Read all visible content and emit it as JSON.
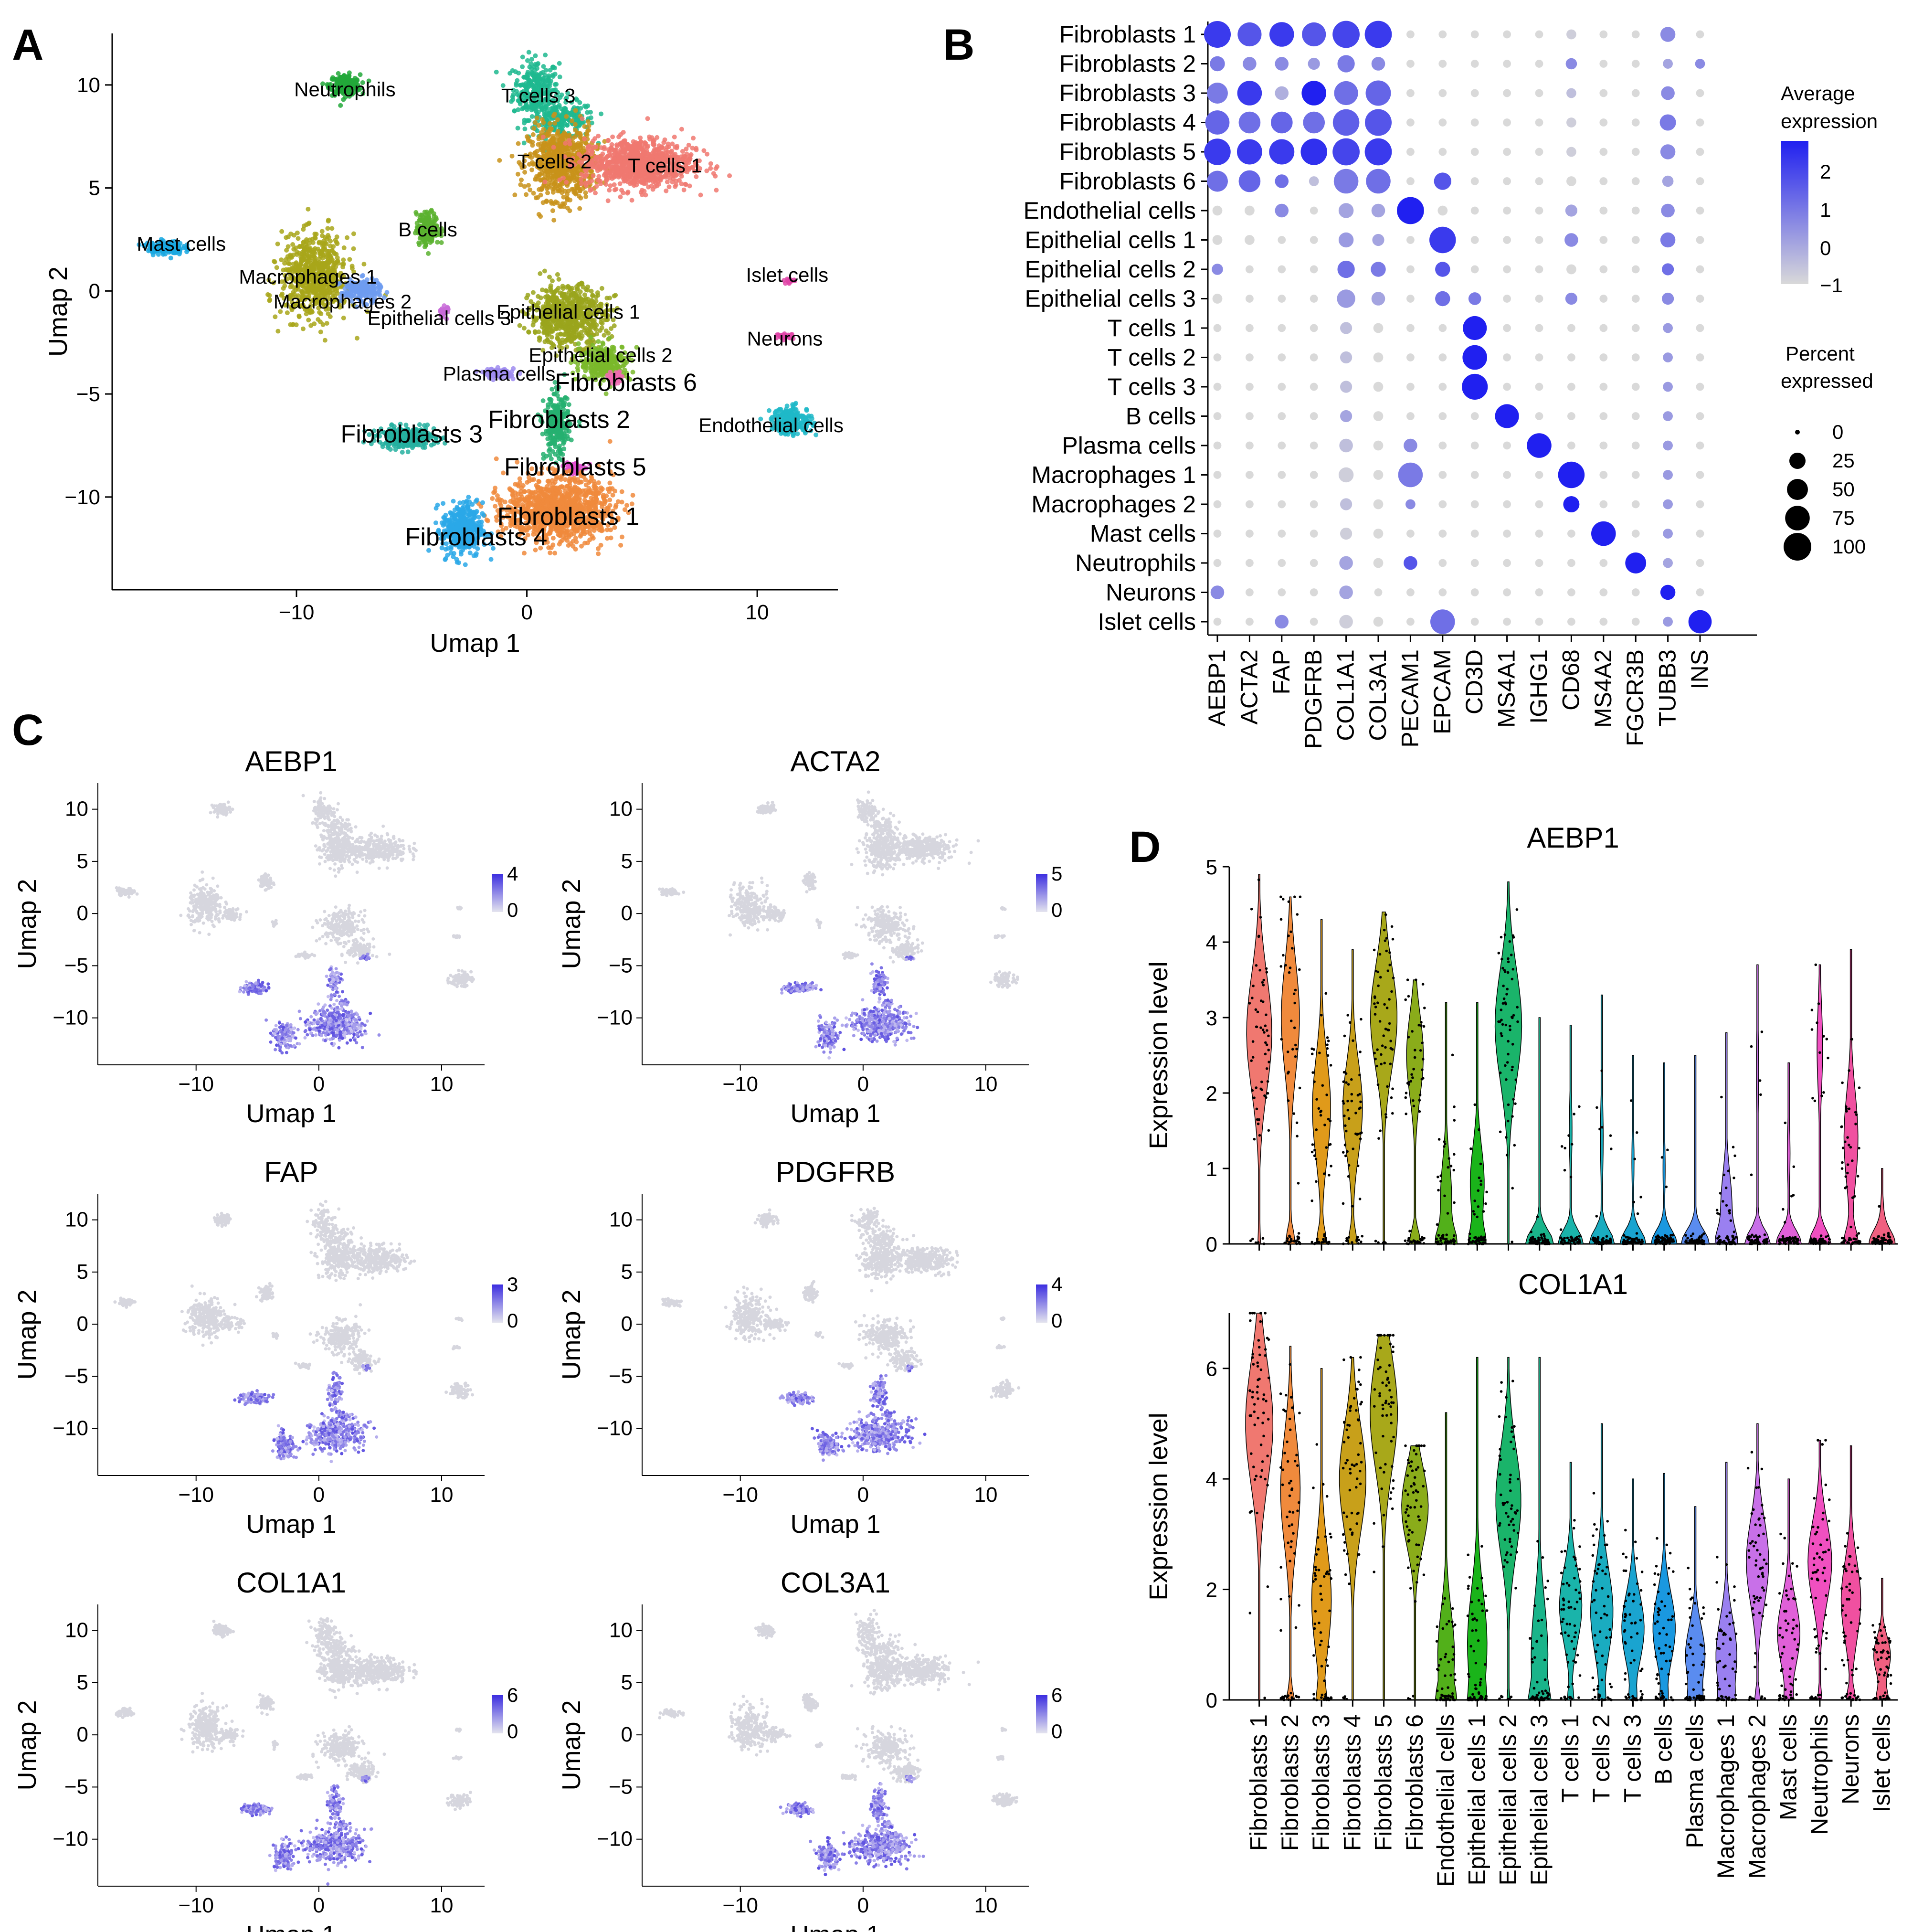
{
  "panels": {
    "A": "A",
    "B": "B",
    "C": "C",
    "D": "D"
  },
  "umap_axes": {
    "xlabel": "Umap 1",
    "ylabel": "Umap 2",
    "a_xticks": [
      -10,
      0,
      10
    ],
    "a_yticks": [
      10,
      5,
      0,
      -5,
      -10
    ],
    "c_xticks": [
      -10,
      0,
      10
    ],
    "c_yticks": [
      10,
      5,
      0,
      -5,
      -10
    ]
  },
  "clusters": [
    {
      "label": "T cells 3",
      "color": "#1fb98f",
      "x": 0.5,
      "y": 9.5,
      "size": "s"
    },
    {
      "label": "Neutrophils",
      "color": "#22a83a",
      "x": -7.9,
      "y": 9.8,
      "size": "s"
    },
    {
      "label": "T cells 2",
      "color": "#c8921a",
      "x": 1.2,
      "y": 6.3,
      "size": "s"
    },
    {
      "label": "T cells 1",
      "color": "#f07870",
      "x": 6.0,
      "y": 6.1,
      "size": "s"
    },
    {
      "label": "B cells",
      "color": "#5bb12f",
      "x": -4.3,
      "y": 3.0,
      "size": "s"
    },
    {
      "label": "Mast cells",
      "color": "#1aa8e0",
      "x": -15.0,
      "y": 2.3,
      "size": "s"
    },
    {
      "label": "Macrophages 1",
      "color": "#a8a61a",
      "x": -9.5,
      "y": 0.7,
      "size": "s"
    },
    {
      "label": "Macrophages 2",
      "color": "#6e9cf0",
      "x": -8.0,
      "y": -0.5,
      "size": "s"
    },
    {
      "label": "Epithelial cells 1",
      "color": "#9aa41c",
      "x": 1.8,
      "y": -1.0,
      "size": "s"
    },
    {
      "label": "Epithelial cells 3",
      "color": "#c86ad8",
      "x": -3.8,
      "y": -1.3,
      "size": "s"
    },
    {
      "label": "Islet cells",
      "color": "#e045a8",
      "x": 11.3,
      "y": 0.8,
      "size": "s"
    },
    {
      "label": "Neurons",
      "color": "#e045a8",
      "x": 11.2,
      "y": -2.3,
      "size": "s"
    },
    {
      "label": "Epithelial cells 2",
      "color": "#7ab82a",
      "x": 3.2,
      "y": -3.1,
      "size": "s"
    },
    {
      "label": "Plasma cells",
      "color": "#9f8cf0",
      "x": -1.2,
      "y": -4.0,
      "size": "s"
    },
    {
      "label": "Fibroblasts 6",
      "color": "#f06ab0",
      "x": 4.3,
      "y": -4.5,
      "size": "l"
    },
    {
      "label": "Fibroblasts 2",
      "color": "#26b070",
      "x": 1.4,
      "y": -6.3,
      "size": "l"
    },
    {
      "label": "Endothelial cells",
      "color": "#1fb8c8",
      "x": 10.6,
      "y": -6.5,
      "size": "s"
    },
    {
      "label": "Fibroblasts 3",
      "color": "#26b0a0",
      "x": -5.0,
      "y": -7.0,
      "size": "l"
    },
    {
      "label": "Fibroblasts 5",
      "color": "#e050d0",
      "x": 2.1,
      "y": -8.6,
      "size": "l"
    },
    {
      "label": "Fibroblasts 1",
      "color": "#f08a3c",
      "x": 1.8,
      "y": -11.0,
      "size": "l"
    },
    {
      "label": "Fibroblasts 4",
      "color": "#2aa8e8",
      "x": -2.2,
      "y": -12.0,
      "size": "l"
    }
  ],
  "dotplot": {
    "genes": [
      "AEBP1",
      "ACTA2",
      "FAP",
      "PDGFRB",
      "COL1A1",
      "COL3A1",
      "PECAM1",
      "EPCAM",
      "CD3D",
      "MS4A1",
      "IGHG1",
      "CD68",
      "MS4A2",
      "FGCR3B",
      "TUBB3",
      "INS"
    ],
    "cell_types": [
      "Fibroblasts 1",
      "Fibroblasts 2",
      "Fibroblasts 3",
      "Fibroblasts 4",
      "Fibroblasts 5",
      "Fibroblasts 6",
      "Endothelial cells",
      "Epithelial cells 1",
      "Epithelial cells 2",
      "Epithelial cells 3",
      "T cells 1",
      "T cells 2",
      "T cells 3",
      "B cells",
      "Plasma cells",
      "Macrophages 1",
      "Macrophages 2",
      "Mast cells",
      "Neutrophils",
      "Neurons",
      "Islet cells"
    ],
    "avg_expression": [
      [
        2,
        1.5,
        2,
        1.5,
        1.8,
        2,
        -1,
        -1,
        -1,
        -1,
        -1,
        -0.8,
        -1,
        -1,
        0.5,
        -1
      ],
      [
        0.8,
        0.5,
        0.5,
        0.2,
        0.8,
        0.5,
        -1,
        -1,
        -1,
        -1,
        -1,
        0.5,
        -1,
        -1,
        0,
        0.5
      ],
      [
        0.8,
        2,
        -0.2,
        2.5,
        1,
        1.2,
        -1,
        -1,
        -1,
        -1,
        -1,
        -0.5,
        -1,
        -1,
        0.5,
        -1
      ],
      [
        1.2,
        1,
        1.2,
        1,
        1.3,
        1.5,
        -1,
        -1,
        -1,
        -1,
        -1,
        -0.8,
        -1,
        -1,
        0.8,
        -1
      ],
      [
        2,
        2,
        2,
        2.2,
        1.8,
        2,
        -1,
        -1,
        -1,
        -1,
        -1,
        -0.8,
        -1,
        -1,
        0.5,
        -1
      ],
      [
        1,
        1.2,
        1,
        -0.5,
        0.8,
        1,
        -1,
        1.5,
        -1,
        -1,
        -1,
        -1,
        -1,
        -1,
        0,
        -1
      ],
      [
        -1,
        -1,
        0.5,
        -1,
        0,
        0,
        2.5,
        -1,
        -1,
        -1,
        -1,
        0,
        -1,
        -1,
        0.5,
        -1
      ],
      [
        -1,
        -1,
        -1,
        -1,
        0.2,
        0,
        -1,
        2,
        -1,
        -1,
        -1,
        0.5,
        -1,
        -1,
        0.8,
        -1
      ],
      [
        0.5,
        -1,
        -1,
        -1,
        1,
        0.8,
        -1,
        1.5,
        -1,
        -1,
        -1,
        -1,
        -1,
        -1,
        1,
        -1
      ],
      [
        -1,
        -1,
        -1,
        -1,
        0.2,
        0,
        -1,
        1,
        0.8,
        -1,
        -1,
        0.5,
        -1,
        -1,
        0.5,
        -1
      ],
      [
        -1,
        -1,
        -1,
        -1,
        -0.5,
        -1,
        -1,
        -1,
        2.5,
        -1,
        -1,
        -1,
        -1,
        -1,
        0.2,
        -1
      ],
      [
        -1,
        -1,
        -1,
        -1,
        -0.5,
        -1,
        -1,
        -1,
        2.5,
        -1,
        -1,
        -1,
        -1,
        -1,
        0.2,
        -1
      ],
      [
        -1,
        -1,
        -1,
        -1,
        -0.5,
        -1,
        -1,
        -1,
        2.5,
        -1,
        -1,
        -1,
        -1,
        -1,
        0.2,
        -1
      ],
      [
        -1,
        -1,
        -1,
        -1,
        0,
        -1,
        -1,
        -1,
        -1,
        2.5,
        -1,
        -1,
        -1,
        -1,
        0.2,
        -1
      ],
      [
        -1,
        -1,
        -1,
        -1,
        -0.5,
        -1,
        0.5,
        -1,
        -1,
        -1,
        2.5,
        -1,
        -1,
        -1,
        0.2,
        -1
      ],
      [
        -1,
        -1,
        -1,
        -1,
        -0.8,
        -1,
        0.8,
        -1,
        -1,
        -1,
        -1,
        2.5,
        -1,
        -1,
        0.2,
        -1
      ],
      [
        -1,
        -1,
        -1,
        -1,
        -0.5,
        -1,
        0.5,
        -1,
        -1,
        -1,
        -1,
        2.5,
        -1,
        -1,
        0.2,
        -1
      ],
      [
        -1,
        -1,
        -1,
        -1,
        -0.8,
        -1,
        -1,
        -1,
        -1,
        -1,
        -1,
        -1,
        2.5,
        -1,
        0.2,
        -1
      ],
      [
        -1,
        -1,
        -1,
        -1,
        0,
        -1,
        1.5,
        -1,
        -1,
        -1,
        -1,
        -1,
        -1,
        2.5,
        0,
        -1
      ],
      [
        0.5,
        -1,
        -1,
        -1,
        0,
        -1,
        -1,
        -1,
        -1,
        -1,
        -1,
        -1,
        -1,
        -1,
        2.5,
        -1
      ],
      [
        -1,
        -1,
        0.5,
        -1,
        -0.8,
        -1,
        -1,
        1,
        -1,
        -1,
        -1,
        -1,
        -1,
        -1,
        0.2,
        2.5
      ]
    ],
    "pct_expressed": [
      [
        92,
        70,
        75,
        70,
        95,
        95,
        2,
        2,
        2,
        2,
        2,
        5,
        2,
        2,
        20,
        2
      ],
      [
        20,
        15,
        15,
        10,
        30,
        15,
        2,
        2,
        2,
        2,
        2,
        8,
        2,
        2,
        5,
        5
      ],
      [
        50,
        75,
        15,
        75,
        70,
        80,
        2,
        2,
        2,
        2,
        2,
        5,
        2,
        2,
        15,
        2
      ],
      [
        72,
        55,
        55,
        55,
        90,
        92,
        2,
        2,
        2,
        2,
        2,
        5,
        2,
        2,
        25,
        2
      ],
      [
        90,
        80,
        80,
        90,
        95,
        95,
        2,
        2,
        2,
        2,
        2,
        5,
        2,
        2,
        20,
        2
      ],
      [
        50,
        55,
        15,
        5,
        75,
        75,
        2,
        30,
        2,
        2,
        2,
        5,
        2,
        2,
        8,
        2
      ],
      [
        5,
        5,
        15,
        2,
        20,
        15,
        95,
        5,
        2,
        2,
        2,
        10,
        2,
        2,
        15,
        2
      ],
      [
        5,
        5,
        2,
        2,
        20,
        10,
        2,
        90,
        2,
        2,
        2,
        15,
        2,
        2,
        20,
        2
      ],
      [
        8,
        2,
        2,
        2,
        30,
        20,
        2,
        20,
        2,
        2,
        2,
        5,
        2,
        2,
        10,
        2
      ],
      [
        5,
        2,
        2,
        2,
        35,
        15,
        2,
        20,
        12,
        2,
        2,
        10,
        2,
        2,
        10,
        2
      ],
      [
        2,
        2,
        2,
        2,
        10,
        5,
        2,
        2,
        70,
        2,
        2,
        2,
        2,
        2,
        5,
        2
      ],
      [
        2,
        2,
        2,
        2,
        10,
        5,
        2,
        2,
        75,
        2,
        2,
        2,
        2,
        2,
        5,
        2
      ],
      [
        2,
        2,
        2,
        2,
        10,
        5,
        2,
        2,
        85,
        2,
        2,
        2,
        2,
        2,
        5,
        2
      ],
      [
        2,
        2,
        2,
        2,
        10,
        5,
        2,
        2,
        2,
        70,
        2,
        2,
        2,
        2,
        5,
        2
      ],
      [
        2,
        2,
        2,
        2,
        15,
        5,
        15,
        2,
        2,
        2,
        75,
        2,
        2,
        2,
        5,
        2
      ],
      [
        2,
        2,
        2,
        2,
        20,
        5,
        75,
        2,
        2,
        2,
        2,
        90,
        2,
        2,
        5,
        2
      ],
      [
        2,
        2,
        2,
        2,
        10,
        5,
        5,
        2,
        2,
        2,
        2,
        25,
        2,
        2,
        5,
        2
      ],
      [
        2,
        2,
        2,
        2,
        10,
        5,
        2,
        2,
        2,
        2,
        2,
        2,
        75,
        2,
        5,
        2
      ],
      [
        2,
        2,
        2,
        2,
        15,
        5,
        15,
        2,
        2,
        2,
        2,
        2,
        2,
        50,
        5,
        2
      ],
      [
        15,
        2,
        2,
        2,
        15,
        2,
        2,
        2,
        2,
        2,
        2,
        2,
        2,
        2,
        20,
        2
      ],
      [
        2,
        2,
        15,
        2,
        15,
        5,
        2,
        75,
        2,
        2,
        2,
        2,
        2,
        2,
        5,
        65
      ]
    ],
    "legend": {
      "avg_title": "Average expression",
      "avg_ticks": [
        2,
        1,
        0,
        -1
      ],
      "pct_title": "Percent expressed",
      "pct_ticks": [
        0,
        25,
        50,
        75,
        100
      ]
    }
  },
  "feature_plots": [
    {
      "gene": "AEBP1",
      "max": 4,
      "min": 0
    },
    {
      "gene": "ACTA2",
      "max": 5,
      "min": 0
    },
    {
      "gene": "FAP",
      "max": 3,
      "min": 0
    },
    {
      "gene": "PDGFRB",
      "max": 4,
      "min": 0
    },
    {
      "gene": "COL1A1",
      "max": 6,
      "min": 0
    },
    {
      "gene": "COL3A1",
      "max": 6,
      "min": 0
    }
  ],
  "violin": {
    "ylabel": "Expression level",
    "categories": [
      "Fibroblasts 1",
      "Fibroblasts 2",
      "Fibroblasts 3",
      "Fibroblasts 4",
      "Fibroblasts 5",
      "Fibroblasts 6",
      "Endothelial cells",
      "Epithelial cells 1",
      "Epithelial cells 2",
      "Epithelial cells 3",
      "T cells 1",
      "T cells 2",
      "T cells 3",
      "B cells",
      "Plasma cells",
      "Macrophages 1",
      "Macrophages 2",
      "Mast cells",
      "Neutrophils",
      "Neurons",
      "Islet cells"
    ],
    "colors": [
      "#f07870",
      "#f08a3c",
      "#e09a1a",
      "#c8a01a",
      "#a8a81a",
      "#8aac1a",
      "#52b01a",
      "#1ab41a",
      "#1ab46a",
      "#1ab48a",
      "#1ab4aa",
      "#1aacc0",
      "#1aa4d0",
      "#1a98e0",
      "#5a8cf0",
      "#9a80f0",
      "#c870e8",
      "#e060d8",
      "#f050c0",
      "#f050a0",
      "#f06080"
    ],
    "plots": [
      {
        "gene": "AEBP1",
        "yticks": [
          0,
          1,
          2,
          3,
          4,
          5
        ],
        "ymax": 5,
        "medians": [
          2.8,
          3.0,
          1.8,
          1.8,
          3.0,
          2.5,
          0.6,
          0.8,
          2.9,
          0.0,
          1.5,
          1.4,
          1.1,
          1.0,
          0.0,
          0.5,
          2.3,
          1.2,
          2.6,
          1.4,
          0.4
        ],
        "maxes": [
          4.9,
          4.6,
          4.3,
          3.9,
          4.4,
          3.5,
          3.2,
          3.2,
          4.8,
          3.0,
          2.9,
          3.3,
          2.5,
          2.4,
          2.5,
          2.8,
          3.7,
          2.4,
          3.7,
          3.9,
          1.0
        ],
        "zero_frac": [
          0.1,
          0.35,
          0.35,
          0.3,
          0.05,
          0.4,
          0.6,
          0.5,
          0.05,
          0.95,
          0.9,
          0.9,
          0.92,
          0.92,
          0.95,
          0.6,
          0.92,
          0.9,
          0.8,
          0.5,
          0.9
        ]
      },
      {
        "gene": "COL1A1",
        "yticks": [
          0,
          2,
          4,
          6
        ],
        "ymax": 7,
        "medians": [
          5.0,
          3.8,
          1.8,
          4.0,
          5.2,
          3.5,
          0.8,
          1.0,
          3.6,
          0.8,
          1.7,
          1.6,
          1.3,
          1.3,
          0.8,
          0.8,
          2.5,
          1.2,
          2.5,
          1.8,
          0.8
        ],
        "maxes": [
          7.0,
          6.4,
          6.0,
          6.2,
          6.6,
          4.6,
          5.2,
          6.2,
          6.2,
          6.2,
          4.3,
          5.0,
          4.0,
          4.1,
          3.5,
          4.3,
          5.0,
          4.0,
          4.7,
          4.6,
          2.2
        ],
        "zero_frac": [
          0.02,
          0.3,
          0.3,
          0.05,
          0.02,
          0.05,
          0.4,
          0.3,
          0.1,
          0.4,
          0.2,
          0.2,
          0.2,
          0.2,
          0.3,
          0.25,
          0.2,
          0.2,
          0.15,
          0.3,
          0.4
        ]
      }
    ]
  }
}
